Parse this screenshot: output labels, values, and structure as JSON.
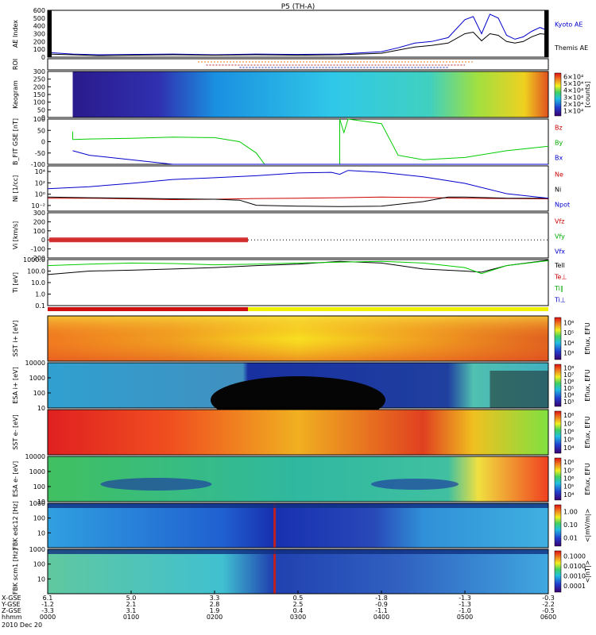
{
  "chart_data": {
    "type": "line",
    "title": "P5 (TH-A)",
    "date": "2010 Dec 20",
    "x_axis": {
      "ticks": [
        "0000",
        "0100",
        "0200",
        "0300",
        "0400",
        "0500",
        "0600"
      ],
      "row_labels": [
        "X-GSE",
        "Y-GSE",
        "Z-GSE",
        "hhmm"
      ],
      "rows": [
        [
          "6.1",
          "5.0",
          "3.3",
          "0.5",
          "-1.8",
          "-1.3",
          "-0.3"
        ],
        [
          "-1.2",
          "2.1",
          "2.8",
          "2.5",
          "-0.9",
          "-1.3",
          "-2.2"
        ],
        [
          "-3.3",
          "3.1",
          "1.9",
          "0.4",
          "-1.1",
          "-1.0",
          "-0.5"
        ]
      ]
    },
    "panels": [
      {
        "id": "ae",
        "ylabel": "AE Index",
        "ylim": [
          0,
          600
        ],
        "yticks": [
          "0",
          "100",
          "200",
          "300",
          "400",
          "500",
          "600"
        ],
        "legend": [
          "Kyoto AE",
          "Themis AE"
        ],
        "legend_colors": [
          "#0000cc",
          "#000000"
        ],
        "series": [
          {
            "name": "Kyoto AE",
            "color": "#0000cc",
            "x": [
              0,
              0.3,
              0.6,
              1.0,
              1.5,
              2.0,
              2.5,
              3.0,
              3.5,
              4.0,
              4.2,
              4.4,
              4.6,
              4.8,
              5.0,
              5.1,
              5.2,
              5.3,
              5.4,
              5.5,
              5.6,
              5.7,
              5.8,
              5.9,
              6.0
            ],
            "y": [
              60,
              40,
              30,
              35,
              40,
              30,
              40,
              35,
              40,
              70,
              120,
              180,
              200,
              250,
              480,
              520,
              300,
              550,
              500,
              280,
              230,
              260,
              330,
              380,
              340
            ]
          },
          {
            "name": "Themis AE",
            "color": "#000000",
            "x": [
              0,
              0.3,
              0.6,
              1.0,
              1.5,
              2.0,
              2.5,
              3.0,
              3.5,
              4.0,
              4.2,
              4.4,
              4.6,
              4.8,
              5.0,
              5.1,
              5.2,
              5.3,
              5.4,
              5.5,
              5.6,
              5.7,
              5.8,
              5.9,
              6.0
            ],
            "y": [
              40,
              30,
              20,
              25,
              30,
              25,
              30,
              25,
              30,
              50,
              90,
              130,
              150,
              180,
              300,
              320,
              210,
              300,
              280,
              200,
              180,
              200,
              260,
              300,
              290
            ]
          }
        ]
      },
      {
        "id": "roi",
        "ylabel": "ROI"
      },
      {
        "id": "keogram",
        "ylabel": "Keogram",
        "ylim": [
          0,
          300
        ],
        "yticks": [
          "0",
          "50",
          "100",
          "150",
          "200",
          "250",
          "300"
        ],
        "colorbar": [
          "1×10⁴",
          "2×10⁴",
          "3×10⁴",
          "4×10⁴",
          "5×10⁴",
          "6×10⁴"
        ],
        "colorbar_label": "[counts]"
      },
      {
        "id": "bfit",
        "ylabel": "B_FIT GSE [nT]",
        "ylim": [
          -100,
          100
        ],
        "yticks": [
          "-100",
          "-50",
          "0",
          "50",
          "100"
        ],
        "legend": [
          "Bz",
          "By",
          "Bx"
        ],
        "legend_colors": [
          "#cc0000",
          "#00aa00",
          "#0000cc"
        ],
        "series": [
          {
            "name": "Bz",
            "color": "#cc0000",
            "x": [],
            "y": []
          },
          {
            "name": "By",
            "color": "#00cc00",
            "x": [
              0.3,
              0.3,
              0.5,
              1.0,
              1.5,
              2.0,
              2.3,
              2.5,
              2.6,
              2.65,
              3.5,
              3.5,
              3.55,
              3.6,
              4.0,
              4.2,
              4.5,
              5.0,
              5.5,
              6.0
            ],
            "y": [
              45,
              10,
              12,
              15,
              20,
              18,
              0,
              -50,
              -100,
              -100,
              -100,
              100,
              40,
              100,
              80,
              -60,
              -80,
              -70,
              -40,
              -20
            ]
          },
          {
            "name": "Bx",
            "color": "#0000cc",
            "x": [
              0.3,
              0.5,
              1.0,
              1.5,
              2.0,
              2.5,
              3.0,
              3.5,
              4.0,
              4.5,
              5.0,
              5.5,
              6.0
            ],
            "y": [
              -40,
              -60,
              -80,
              -100,
              -100,
              -100,
              -100,
              -100,
              -100,
              -100,
              -100,
              -100,
              -100
            ]
          }
        ]
      },
      {
        "id": "ni",
        "ylabel": "Ni [1/cc]",
        "ylim": [
          0.01,
          100000
        ],
        "scale": "log",
        "yticks": [
          "10⁻²",
          "10⁰",
          "10²",
          "10⁴"
        ],
        "legend": [
          "Ne",
          "Ni",
          "Npot"
        ],
        "legend_colors": [
          "#cc0000",
          "#000000",
          "#0000cc"
        ],
        "series": [
          {
            "name": "Ne",
            "color": "#cc0000",
            "x": [
              0,
              0.5,
              1.0,
              1.5,
              2.0,
              2.5,
              3.0,
              3.5,
              4.0,
              4.5,
              5.0,
              5.5,
              6.0
            ],
            "y": [
              1.0,
              1.0,
              0.8,
              0.6,
              0.7,
              0.9,
              1.0,
              1.2,
              1.5,
              1.3,
              1.0,
              0.9,
              0.8
            ]
          },
          {
            "name": "Ni",
            "color": "#000000",
            "x": [
              0,
              0.5,
              1.0,
              1.5,
              2.0,
              2.3,
              2.5,
              3.0,
              3.5,
              4.0,
              4.5,
              4.8,
              5.0,
              5.5,
              6.0
            ],
            "y": [
              1.5,
              1.2,
              1.0,
              0.8,
              0.7,
              0.5,
              0.08,
              0.06,
              0.05,
              0.06,
              0.3,
              1.5,
              1.5,
              1.0,
              1.0
            ]
          },
          {
            "name": "Npot",
            "color": "#0000cc",
            "x": [
              0,
              0.5,
              1.0,
              1.5,
              2.0,
              2.5,
              3.0,
              3.4,
              3.5,
              3.6,
              4.0,
              4.5,
              5.0,
              5.5,
              6.0
            ],
            "y": [
              30,
              60,
              200,
              800,
              1500,
              3000,
              8000,
              10000,
              5000,
              20000,
              10000,
              2000,
              200,
              5,
              1
            ]
          }
        ]
      },
      {
        "id": "vi",
        "ylabel": "Vi [km/s]",
        "ylim": [
          -200,
          300
        ],
        "yticks": [
          "-200",
          "-100",
          "0",
          "100",
          "200",
          "300"
        ],
        "legend": [
          "Vfz",
          "Vfy",
          "Vfx"
        ],
        "legend_colors": [
          "#cc0000",
          "#00aa00",
          "#0000cc"
        ],
        "series": [
          {
            "name": "Vfz",
            "color": "#cc0000",
            "x": [
              0,
              2.4
            ],
            "y": [
              0,
              0
            ]
          }
        ]
      },
      {
        "id": "ti",
        "ylabel": "Ti [eV]",
        "ylim": [
          0.1,
          1000
        ],
        "scale": "log",
        "yticks": [
          "0.1",
          "1.0",
          "10.0",
          "100.0",
          "1000.0"
        ],
        "legend": [
          "Tell",
          "Te⊥",
          "Ti∥",
          "Ti⊥"
        ],
        "legend_colors": [
          "#000000",
          "#cc0000",
          "#00aa00",
          "#0000cc"
        ],
        "series": [
          {
            "name": "Tell",
            "color": "#000000",
            "x": [
              0,
              0.5,
              1.0,
              1.5,
              2.0,
              2.5,
              3.0,
              3.5,
              4.0,
              4.5,
              5.0,
              5.2,
              5.5,
              6.0
            ],
            "y": [
              50,
              100,
              120,
              150,
              200,
              300,
              400,
              700,
              500,
              150,
              100,
              80,
              300,
              900
            ]
          },
          {
            "name": "Ti∥",
            "color": "#00cc00",
            "x": [
              0,
              0.5,
              1.0,
              1.5,
              2.0,
              2.5,
              3.0,
              3.5,
              4.0,
              4.5,
              5.0,
              5.2,
              5.5,
              6.0
            ],
            "y": [
              300,
              400,
              500,
              450,
              350,
              400,
              500,
              600,
              700,
              500,
              200,
              60,
              300,
              800
            ]
          }
        ]
      },
      {
        "id": "sst_i",
        "ylabel": "SST i+ [eV]",
        "colorbar": [
          "10³",
          "10⁴",
          "10⁵",
          "10⁶"
        ],
        "colorbar_label": "Eflux, EFU"
      },
      {
        "id": "esa_i",
        "ylabel": "ESA i+ [eV]",
        "ylim": [
          10,
          10000
        ],
        "scale": "log",
        "yticks": [
          "10",
          "100",
          "1000",
          "10000"
        ],
        "colorbar": [
          "10³",
          "10⁴",
          "10⁵",
          "10⁶",
          "10⁷",
          "10⁸"
        ],
        "colorbar_label": "Eflux, EFU"
      },
      {
        "id": "sst_e",
        "ylabel": "SST e- [eV]",
        "colorbar": [
          "10⁴",
          "10⁵",
          "10⁶",
          "10⁷",
          "10⁸"
        ],
        "colorbar_label": "Eflux, EFU"
      },
      {
        "id": "esa_e",
        "ylabel": "ESA e- [eV]",
        "ylim": [
          10,
          10000
        ],
        "scale": "log",
        "yticks": [
          "10",
          "100",
          "1000",
          "10000"
        ],
        "colorbar": [
          "10⁴",
          "10⁵",
          "10⁶",
          "10⁷",
          "10⁸"
        ],
        "colorbar_label": "Eflux, EFU"
      },
      {
        "id": "fbk_e",
        "ylabel": "FBK edc12 [Hz]",
        "ylim": [
          1,
          1000
        ],
        "scale": "log",
        "yticks": [
          "10",
          "100",
          "1000"
        ],
        "colorbar": [
          "0.01",
          "0.10",
          "1.00"
        ],
        "colorbar_label": "<|mV/m|>"
      },
      {
        "id": "fbk_b",
        "ylabel": "FBK scm1 [Hz]",
        "ylim": [
          1,
          1000
        ],
        "scale": "log",
        "yticks": [
          "10",
          "100",
          "1000"
        ],
        "colorbar": [
          "0.0001",
          "0.0010",
          "0.0100",
          "0.1000"
        ],
        "colorbar_label": "<|nT|>"
      }
    ]
  }
}
